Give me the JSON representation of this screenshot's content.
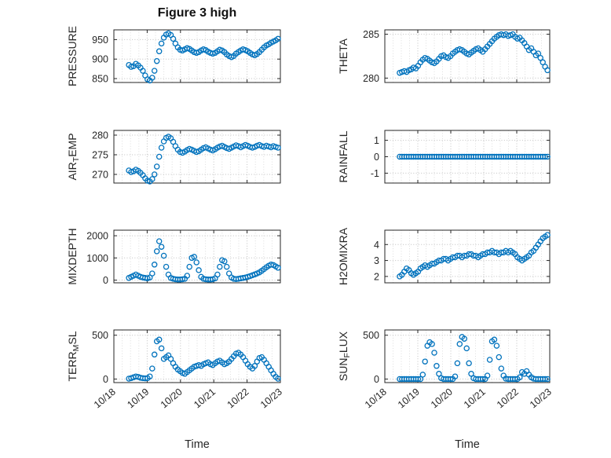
{
  "chart_data": {
    "type": "scatter",
    "title": "Figure 3 high",
    "xlabel": "Time",
    "xlim": [
      18,
      23
    ],
    "xticks": [
      18,
      19,
      20,
      21,
      22,
      23
    ],
    "xtick_labels": [
      "10/18",
      "10/19",
      "10/20",
      "10/21",
      "10/22",
      "10/23"
    ],
    "marker": {
      "shape": "open-circle",
      "color": "#0072BD"
    },
    "grid": {
      "major": true,
      "minor_x": true,
      "style": "dotted"
    },
    "x": [
      18.45,
      18.52,
      18.59,
      18.66,
      18.73,
      18.8,
      18.87,
      18.94,
      19.01,
      19.08,
      19.15,
      19.22,
      19.29,
      19.36,
      19.43,
      19.5,
      19.57,
      19.64,
      19.71,
      19.78,
      19.85,
      19.92,
      19.99,
      20.06,
      20.13,
      20.2,
      20.27,
      20.34,
      20.41,
      20.48,
      20.55,
      20.62,
      20.69,
      20.76,
      20.83,
      20.9,
      20.97,
      21.04,
      21.11,
      21.18,
      21.25,
      21.32,
      21.39,
      21.46,
      21.53,
      21.6,
      21.67,
      21.74,
      21.81,
      21.88,
      21.95,
      22.02,
      22.09,
      22.16,
      22.23,
      22.3,
      22.37,
      22.44,
      22.51,
      22.58,
      22.65,
      22.72,
      22.79,
      22.86,
      22.93
    ],
    "subplots": [
      {
        "name": "PRESSURE",
        "label": "PRESSURE",
        "row": 0,
        "col": 0,
        "ylim": [
          840,
          975
        ],
        "yticks": [
          850,
          900,
          950
        ],
        "values": [
          885,
          880,
          882,
          888,
          884,
          878,
          870,
          858,
          848,
          845,
          852,
          870,
          895,
          920,
          940,
          955,
          963,
          966,
          962,
          952,
          940,
          930,
          924,
          922,
          925,
          928,
          926,
          922,
          918,
          916,
          918,
          922,
          925,
          923,
          919,
          916,
          914,
          916,
          920,
          924,
          922,
          918,
          912,
          908,
          905,
          908,
          914,
          918,
          922,
          925,
          923,
          920,
          916,
          912,
          910,
          913,
          918,
          924,
          930,
          935,
          938,
          942,
          945,
          948,
          952
        ]
      },
      {
        "name": "THETA",
        "label": "THETA",
        "row": 0,
        "col": 1,
        "ylim": [
          279.5,
          285.5
        ],
        "yticks": [
          280,
          285
        ],
        "values": [
          280.6,
          280.7,
          280.8,
          280.7,
          280.9,
          281,
          281.2,
          281.1,
          281.4,
          281.8,
          282.1,
          282.3,
          282.2,
          282,
          281.8,
          281.7,
          281.9,
          282.2,
          282.5,
          282.6,
          282.4,
          282.3,
          282.5,
          282.8,
          283,
          283.2,
          283.3,
          283.2,
          283,
          282.8,
          282.7,
          282.9,
          283.1,
          283.3,
          283.4,
          283.2,
          283,
          283.3,
          283.6,
          283.9,
          284.2,
          284.5,
          284.7,
          284.9,
          285,
          284.9,
          285,
          284.8,
          284.9,
          285,
          284.7,
          284.5,
          284.6,
          284.3,
          284,
          283.6,
          283.2,
          283.4,
          283,
          282.6,
          282.8,
          282.3,
          281.8,
          281.3,
          280.9
        ]
      },
      {
        "name": "AIR_TEMP",
        "label": "AIR_TEMP",
        "row": 1,
        "col": 0,
        "ylim": [
          267.8,
          281.2
        ],
        "yticks": [
          270,
          275,
          280
        ],
        "values": [
          271,
          270.6,
          270.8,
          271.2,
          270.9,
          270.4,
          269.8,
          269,
          268.4,
          268.2,
          268.8,
          270,
          272,
          274.5,
          276.8,
          278.4,
          279.3,
          279.6,
          279.2,
          278.3,
          277.2,
          276.3,
          275.7,
          275.5,
          275.8,
          276.2,
          276.5,
          276.3,
          276,
          275.7,
          275.9,
          276.3,
          276.7,
          276.9,
          276.6,
          276.3,
          276.1,
          276.4,
          276.8,
          277.1,
          277.3,
          277,
          276.7,
          276.5,
          276.8,
          277.1,
          277.4,
          277.2,
          276.9,
          277.2,
          277.5,
          277.3,
          277,
          276.8,
          277,
          277.3,
          277.5,
          277.2,
          277,
          277.3,
          277.1,
          276.9,
          277.2,
          277,
          276.8
        ]
      },
      {
        "name": "RAINFALL",
        "label": "RAINFALL",
        "row": 1,
        "col": 1,
        "ylim": [
          -1.6,
          1.6
        ],
        "yticks": [
          -1,
          0,
          1
        ],
        "values": [
          0,
          0,
          0,
          0,
          0,
          0,
          0,
          0,
          0,
          0,
          0,
          0,
          0,
          0,
          0,
          0,
          0,
          0,
          0,
          0,
          0,
          0,
          0,
          0,
          0,
          0,
          0,
          0,
          0,
          0,
          0,
          0,
          0,
          0,
          0,
          0,
          0,
          0,
          0,
          0,
          0,
          0,
          0,
          0,
          0,
          0,
          0,
          0,
          0,
          0,
          0,
          0,
          0,
          0,
          0,
          0,
          0,
          0,
          0,
          0,
          0,
          0,
          0,
          0,
          0
        ]
      },
      {
        "name": "MIXDEPTH",
        "label": "MIXDEPTH",
        "row": 2,
        "col": 0,
        "ylim": [
          -120,
          2250
        ],
        "yticks": [
          0,
          1000,
          2000
        ],
        "values": [
          100,
          150,
          200,
          250,
          200,
          150,
          120,
          100,
          80,
          120,
          300,
          700,
          1300,
          1750,
          1500,
          1100,
          600,
          250,
          100,
          60,
          40,
          30,
          30,
          40,
          60,
          200,
          600,
          1000,
          1050,
          800,
          450,
          150,
          60,
          40,
          30,
          30,
          40,
          80,
          250,
          600,
          900,
          850,
          600,
          300,
          120,
          60,
          50,
          60,
          80,
          100,
          120,
          150,
          180,
          220,
          260,
          300,
          350,
          420,
          500,
          580,
          650,
          700,
          680,
          620,
          560
        ]
      },
      {
        "name": "H2OMIXRA",
        "label": "H2OMIXRA",
        "row": 2,
        "col": 1,
        "ylim": [
          1.6,
          4.9
        ],
        "yticks": [
          2,
          3,
          4
        ],
        "values": [
          2,
          2.1,
          2.3,
          2.5,
          2.4,
          2.2,
          2.1,
          2.2,
          2.3,
          2.5,
          2.6,
          2.7,
          2.6,
          2.7,
          2.8,
          2.8,
          2.9,
          3,
          3,
          3.1,
          3.1,
          3,
          3.1,
          3.2,
          3.2,
          3.3,
          3.3,
          3.2,
          3.3,
          3.3,
          3.4,
          3.4,
          3.3,
          3.3,
          3.2,
          3.3,
          3.4,
          3.4,
          3.5,
          3.5,
          3.6,
          3.5,
          3.5,
          3.4,
          3.5,
          3.5,
          3.6,
          3.5,
          3.6,
          3.5,
          3.4,
          3.2,
          3.1,
          3,
          3.1,
          3.2,
          3.3,
          3.5,
          3.6,
          3.8,
          4,
          4.2,
          4.4,
          4.5,
          4.6
        ]
      },
      {
        "name": "TERR_MSL",
        "label": "TERR_MSL",
        "row": 3,
        "col": 0,
        "ylim": [
          -40,
          560
        ],
        "yticks": [
          0,
          500
        ],
        "values": [
          5,
          10,
          20,
          30,
          25,
          15,
          10,
          8,
          10,
          30,
          120,
          280,
          430,
          450,
          350,
          230,
          250,
          270,
          230,
          180,
          140,
          110,
          90,
          70,
          60,
          80,
          100,
          120,
          140,
          150,
          160,
          150,
          170,
          180,
          190,
          170,
          160,
          180,
          200,
          210,
          190,
          170,
          180,
          200,
          230,
          260,
          290,
          300,
          280,
          250,
          210,
          170,
          140,
          120,
          150,
          200,
          240,
          250,
          220,
          180,
          140,
          100,
          60,
          25,
          5
        ]
      },
      {
        "name": "SUN_FLUX",
        "label": "SUN_FLUX",
        "row": 3,
        "col": 1,
        "ylim": [
          -40,
          560
        ],
        "yticks": [
          0,
          500
        ],
        "values": [
          0,
          0,
          0,
          0,
          0,
          0,
          0,
          0,
          0,
          0,
          50,
          200,
          380,
          420,
          400,
          300,
          150,
          60,
          10,
          0,
          0,
          0,
          0,
          0,
          30,
          180,
          400,
          480,
          460,
          350,
          180,
          60,
          10,
          0,
          0,
          0,
          0,
          0,
          40,
          220,
          430,
          450,
          380,
          250,
          120,
          40,
          5,
          0,
          0,
          0,
          0,
          0,
          20,
          80,
          60,
          90,
          50,
          20,
          5,
          0,
          0,
          0,
          0,
          0,
          0
        ]
      }
    ]
  }
}
